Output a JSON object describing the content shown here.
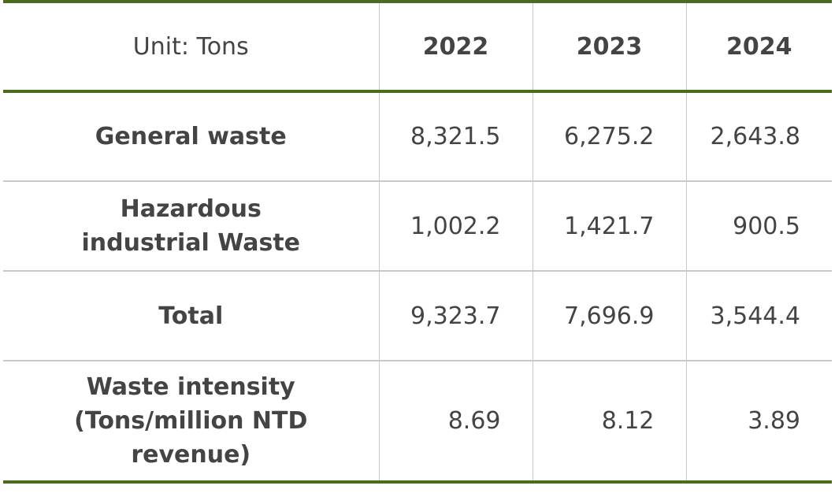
{
  "header": {
    "unit": "Unit: Tons",
    "years": [
      "2022",
      "2023",
      "2024"
    ]
  },
  "rows": [
    {
      "label": [
        "General waste"
      ],
      "values": [
        "8,321.5",
        "6,275.2",
        "2,643.8"
      ]
    },
    {
      "label": [
        "Hazardous",
        "industrial Waste"
      ],
      "values": [
        "1,002.2",
        "1,421.7",
        "900.5"
      ]
    },
    {
      "label": [
        "Total"
      ],
      "values": [
        "9,323.7",
        "7,696.9",
        "3,544.4"
      ]
    },
    {
      "label": [
        "Waste intensity",
        "(Tons/million NTD",
        "revenue)"
      ],
      "values": [
        "8.69",
        "8.12",
        "3.89"
      ]
    }
  ]
}
